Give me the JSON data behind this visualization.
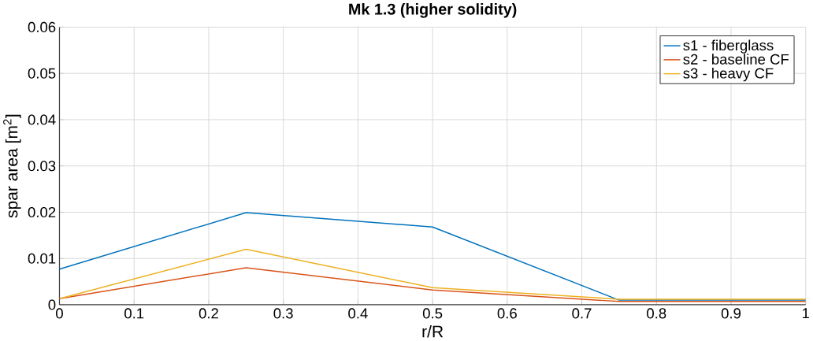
{
  "chart_data": {
    "type": "line",
    "title": "Mk 1.3 (higher solidity)",
    "xlabel": "r/R",
    "ylabel": "spar area [m$^{2}$]",
    "x": [
      0,
      0.25,
      0.5,
      0.75,
      1
    ],
    "series": [
      {
        "name": "s1 - fiberglass",
        "color": "#0072bd",
        "values": [
          0.0077,
          0.0199,
          0.0168,
          0.001,
          0.001
        ]
      },
      {
        "name": "s2 - baseline CF",
        "color": "#d95319",
        "values": [
          0.0013,
          0.008,
          0.0032,
          0.0007,
          0.0007
        ]
      },
      {
        "name": "s3 - heavy CF",
        "color": "#edb120",
        "values": [
          0.0013,
          0.012,
          0.0037,
          0.0012,
          0.0012
        ]
      }
    ],
    "xlim": [
      0,
      1
    ],
    "ylim": [
      0,
      0.06
    ],
    "xticks": [
      0,
      0.1,
      0.2,
      0.3,
      0.4,
      0.5,
      0.6,
      0.7,
      0.8,
      0.9,
      1
    ],
    "yticks": [
      0,
      0.01,
      0.02,
      0.03,
      0.04,
      0.05,
      0.06
    ],
    "grid": true,
    "legend": "top right",
    "line_style": "solid",
    "marker": "none"
  }
}
